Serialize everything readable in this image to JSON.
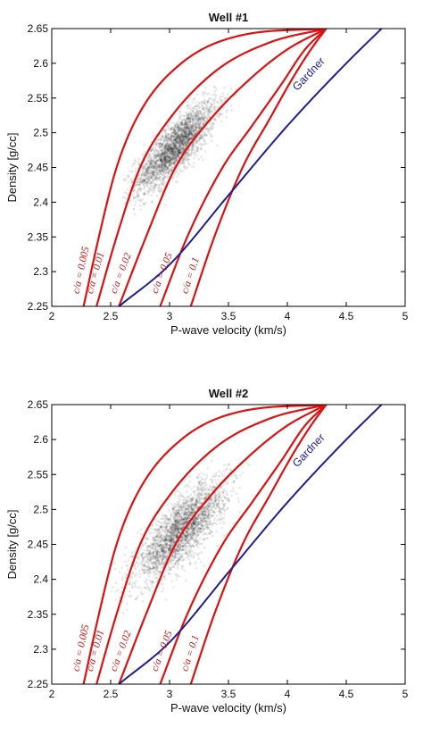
{
  "chart_data": [
    {
      "type": "scatter",
      "title": "Well #1",
      "xlabel": "P-wave velocity (km/s)",
      "ylabel": "Density [g/cc]",
      "xlim": [
        2,
        5
      ],
      "ylim": [
        2.25,
        2.65
      ],
      "xticks": [
        "2",
        "2.5",
        "3",
        "3.5",
        "4",
        "4.5",
        "5"
      ],
      "yticks": [
        "2.25",
        "2.3",
        "2.35",
        "2.4",
        "2.45",
        "2.5",
        "2.55",
        "2.6",
        "2.65"
      ],
      "cloud": {
        "center": [
          3.05,
          2.48
        ],
        "spread_v": 0.17,
        "spread_rho": 0.032,
        "correlation": 0.82,
        "extent_v": [
          2.6,
          3.6
        ],
        "extent_rho": [
          2.38,
          2.57
        ]
      },
      "curves": [
        {
          "label": "c/a = 0.005",
          "color": "#dd1111",
          "points": [
            [
              2.27,
              2.25
            ],
            [
              2.4,
              2.35
            ],
            [
              2.55,
              2.45
            ],
            [
              2.75,
              2.53
            ],
            [
              3.1,
              2.6
            ],
            [
              3.6,
              2.64
            ],
            [
              4.33,
              2.65
            ]
          ]
        },
        {
          "label": "c/a = 0.01",
          "color": "#dd1111",
          "points": [
            [
              2.38,
              2.25
            ],
            [
              2.55,
              2.35
            ],
            [
              2.75,
              2.45
            ],
            [
              3.0,
              2.52
            ],
            [
              3.4,
              2.59
            ],
            [
              3.85,
              2.63
            ],
            [
              4.33,
              2.65
            ]
          ]
        },
        {
          "label": "c/a = 0.02",
          "color": "#dd1111",
          "points": [
            [
              2.57,
              2.25
            ],
            [
              2.8,
              2.35
            ],
            [
              3.05,
              2.45
            ],
            [
              3.35,
              2.52
            ],
            [
              3.7,
              2.58
            ],
            [
              4.0,
              2.62
            ],
            [
              4.33,
              2.65
            ]
          ]
        },
        {
          "label": "c/a = 0.05",
          "color": "#dd1111",
          "points": [
            [
              2.92,
              2.25
            ],
            [
              3.15,
              2.35
            ],
            [
              3.45,
              2.45
            ],
            [
              3.7,
              2.51
            ],
            [
              3.95,
              2.57
            ],
            [
              4.15,
              2.62
            ],
            [
              4.33,
              2.65
            ]
          ]
        },
        {
          "label": "c/a = 0.1",
          "color": "#dd1111",
          "points": [
            [
              3.18,
              2.25
            ],
            [
              3.38,
              2.35
            ],
            [
              3.62,
              2.45
            ],
            [
              3.85,
              2.52
            ],
            [
              4.05,
              2.58
            ],
            [
              4.2,
              2.62
            ],
            [
              4.33,
              2.65
            ]
          ]
        }
      ],
      "gardner": {
        "label": "Gardner",
        "color": "#1f1f8f",
        "points": [
          [
            2.57,
            2.25
          ],
          [
            3.0,
            2.31
          ],
          [
            3.5,
            2.41
          ],
          [
            4.0,
            2.51
          ],
          [
            4.5,
            2.6
          ],
          [
            4.8,
            2.65
          ]
        ]
      }
    },
    {
      "type": "scatter",
      "title": "Well #2",
      "xlabel": "P-wave velocity (km/s)",
      "ylabel": "Density [g/cc]",
      "xlim": [
        2,
        5
      ],
      "ylim": [
        2.25,
        2.65
      ],
      "xticks": [
        "2",
        "2.5",
        "3",
        "3.5",
        "4",
        "4.5",
        "5"
      ],
      "yticks": [
        "2.25",
        "2.3",
        "2.35",
        "2.4",
        "2.45",
        "2.5",
        "2.55",
        "2.6",
        "2.65"
      ],
      "cloud": {
        "center": [
          3.1,
          2.47
        ],
        "spread_v": 0.19,
        "spread_rho": 0.036,
        "correlation": 0.78,
        "extent_v": [
          2.5,
          3.7
        ],
        "extent_rho": [
          2.35,
          2.57
        ]
      },
      "curves": [
        {
          "label": "c/a = 0.005",
          "color": "#dd1111",
          "points": [
            [
              2.27,
              2.25
            ],
            [
              2.4,
              2.35
            ],
            [
              2.55,
              2.45
            ],
            [
              2.75,
              2.53
            ],
            [
              3.1,
              2.6
            ],
            [
              3.6,
              2.64
            ],
            [
              4.33,
              2.65
            ]
          ]
        },
        {
          "label": "c/a = 0.01",
          "color": "#dd1111",
          "points": [
            [
              2.38,
              2.25
            ],
            [
              2.55,
              2.35
            ],
            [
              2.75,
              2.45
            ],
            [
              3.0,
              2.52
            ],
            [
              3.4,
              2.59
            ],
            [
              3.85,
              2.63
            ],
            [
              4.33,
              2.65
            ]
          ]
        },
        {
          "label": "c/a = 0.02",
          "color": "#dd1111",
          "points": [
            [
              2.57,
              2.25
            ],
            [
              2.8,
              2.35
            ],
            [
              3.05,
              2.45
            ],
            [
              3.35,
              2.52
            ],
            [
              3.7,
              2.58
            ],
            [
              4.0,
              2.62
            ],
            [
              4.33,
              2.65
            ]
          ]
        },
        {
          "label": "c/a = 0.05",
          "color": "#dd1111",
          "points": [
            [
              2.92,
              2.25
            ],
            [
              3.15,
              2.35
            ],
            [
              3.45,
              2.45
            ],
            [
              3.7,
              2.51
            ],
            [
              3.95,
              2.57
            ],
            [
              4.15,
              2.62
            ],
            [
              4.33,
              2.65
            ]
          ]
        },
        {
          "label": "c/a = 0.1",
          "color": "#dd1111",
          "points": [
            [
              3.18,
              2.25
            ],
            [
              3.38,
              2.35
            ],
            [
              3.62,
              2.45
            ],
            [
              3.85,
              2.52
            ],
            [
              4.05,
              2.58
            ],
            [
              4.2,
              2.62
            ],
            [
              4.33,
              2.65
            ]
          ]
        }
      ],
      "gardner": {
        "label": "Gardner",
        "color": "#1f1f8f",
        "points": [
          [
            2.57,
            2.25
          ],
          [
            3.0,
            2.31
          ],
          [
            3.5,
            2.41
          ],
          [
            4.0,
            2.51
          ],
          [
            4.5,
            2.6
          ],
          [
            4.8,
            2.65
          ]
        ]
      }
    }
  ]
}
